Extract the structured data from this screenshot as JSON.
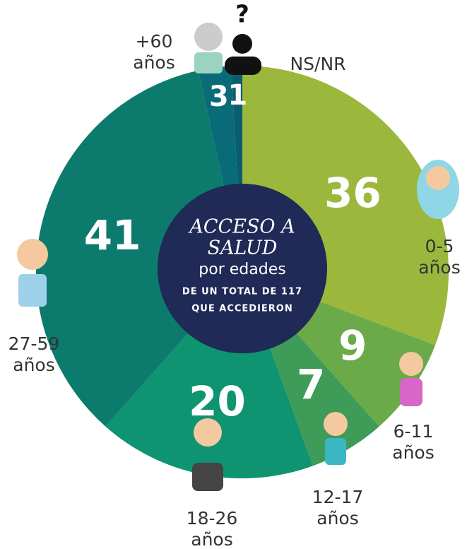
{
  "chart_data": {
    "type": "pie",
    "categories": [
      "0-5 años",
      "6-11 años",
      "12-17 años",
      "18-26 años",
      "27-59 años",
      "+60 años",
      "NS/NR"
    ],
    "values": [
      36,
      9,
      7,
      20,
      41,
      3,
      1
    ],
    "colors": [
      "#9cb83c",
      "#6aaa48",
      "#3e9b58",
      "#0e9470",
      "#0c7b6d",
      "#0a6b78",
      "#095d6c"
    ],
    "center_text": [
      "ACCESO A",
      "SALUD",
      "por edades",
      "DE UN TOTAL DE 117",
      "QUE ACCEDIERON"
    ]
  }
}
